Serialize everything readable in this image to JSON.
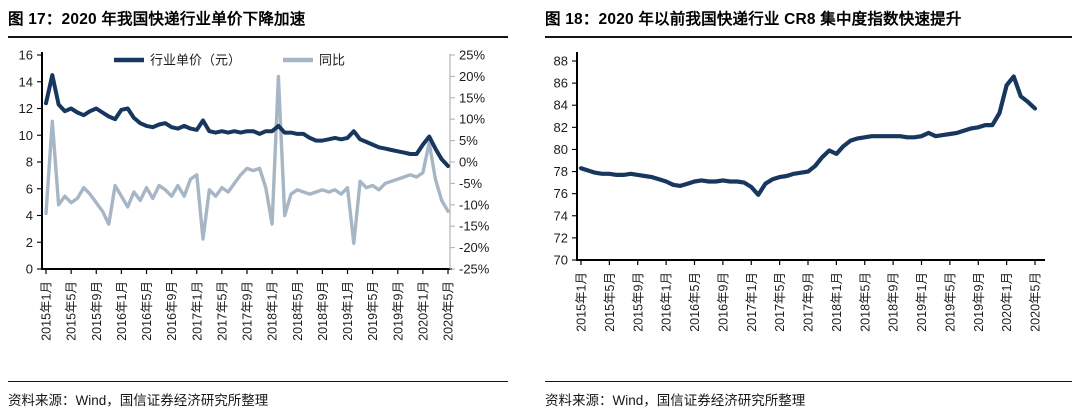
{
  "page": {
    "background": "#ffffff",
    "text_color": "#111111"
  },
  "chart_data": [
    {
      "type": "line",
      "title": "图 17：2020 年我国快递行业单价下降加速",
      "source": "资料来源：Wind，国信证券经济研究所整理",
      "x_start": "2015年1月",
      "x_end": "2020年5月",
      "x_interval": "月",
      "x_tick_labels": [
        "2015年1月",
        "2015年5月",
        "2015年9月",
        "2016年1月",
        "2016年5月",
        "2016年9月",
        "2017年1月",
        "2017年5月",
        "2017年9月",
        "2018年1月",
        "2018年5月",
        "2018年9月",
        "2019年1月",
        "2019年5月",
        "2019年9月",
        "2020年1月",
        "2020年5月"
      ],
      "left_axis": {
        "min": 0,
        "max": 16,
        "ticks": [
          16,
          14,
          12,
          10,
          8,
          6,
          4,
          2,
          0
        ]
      },
      "right_axis": {
        "min": -25,
        "max": 25,
        "tick_labels": [
          "25%",
          "20%",
          "15%",
          "10%",
          "5%",
          "0%",
          "-5%",
          "-10%",
          "-15%",
          "-20%",
          "-25%"
        ]
      },
      "legend": [
        {
          "name": "行业单价（元）",
          "color": "#17375e"
        },
        {
          "name": "同比",
          "color": "#a7b6c5"
        }
      ],
      "series": [
        {
          "name": "行业单价（元）",
          "axis": "left",
          "unit": "元",
          "color": "#17375e",
          "values": [
            12.4,
            14.5,
            12.3,
            11.8,
            12.0,
            11.7,
            11.5,
            11.8,
            12.0,
            11.7,
            11.4,
            11.2,
            11.9,
            12.0,
            11.3,
            10.9,
            10.7,
            10.6,
            10.8,
            10.9,
            10.6,
            10.5,
            10.7,
            10.5,
            10.4,
            11.1,
            10.3,
            10.2,
            10.3,
            10.2,
            10.3,
            10.2,
            10.3,
            10.3,
            10.1,
            10.3,
            10.3,
            10.7,
            10.2,
            10.2,
            10.1,
            10.1,
            9.8,
            9.6,
            9.6,
            9.7,
            9.8,
            9.7,
            9.8,
            10.3,
            9.7,
            9.5,
            9.3,
            9.1,
            9.0,
            8.9,
            8.8,
            8.7,
            8.6,
            8.6,
            9.3,
            9.9,
            9.0,
            8.2,
            7.7
          ]
        },
        {
          "name": "同比",
          "axis": "right",
          "unit": "%",
          "color": "#a7b6c5",
          "values": [
            -12,
            9.5,
            -10,
            -8,
            -9.5,
            -8.5,
            -6,
            -7.5,
            -9.5,
            -11.5,
            -14.5,
            -5.5,
            -8,
            -10.5,
            -7,
            -9,
            -6,
            -8.5,
            -5.5,
            -6.5,
            -8,
            -5.5,
            -8,
            -4,
            -3,
            -18,
            -6.5,
            -8,
            -6,
            -7,
            -5,
            -3,
            -1.5,
            -2,
            -1.5,
            -6,
            -14.5,
            20,
            -12.5,
            -7.5,
            -6.5,
            -7,
            -7.5,
            -7,
            -6.5,
            -7,
            -6.5,
            -7.5,
            -6,
            -19,
            -4.5,
            -6,
            -5.5,
            -6.5,
            -5,
            -4.5,
            -4,
            -3.5,
            -3,
            -3.5,
            -2.5,
            4.5,
            -4,
            -9,
            -11.5
          ]
        }
      ]
    },
    {
      "type": "line",
      "title": "图 18：2020 年以前我国快递行业 CR8 集中度指数快速提升",
      "source": "资料来源：Wind，国信证券经济研究所整理",
      "x_start": "2015年1月",
      "x_end": "2020年5月",
      "x_interval": "月",
      "x_tick_labels": [
        "2015年1月",
        "2015年5月",
        "2015年9月",
        "2016年1月",
        "2016年5月",
        "2016年9月",
        "2017年1月",
        "2017年5月",
        "2017年9月",
        "2018年1月",
        "2018年5月",
        "2018年9月",
        "2019年1月",
        "2019年5月",
        "2019年9月",
        "2020年1月",
        "2020年5月"
      ],
      "y_axis": {
        "min": 70,
        "max": 88,
        "ticks": [
          88,
          86,
          84,
          82,
          80,
          78,
          76,
          74,
          72,
          70
        ]
      },
      "series": [
        {
          "name": "CR8",
          "color": "#17375e",
          "values": [
            78.3,
            78.1,
            77.9,
            77.8,
            77.8,
            77.7,
            77.7,
            77.8,
            77.7,
            77.6,
            77.5,
            77.3,
            77.1,
            76.8,
            76.7,
            76.9,
            77.1,
            77.2,
            77.1,
            77.1,
            77.2,
            77.1,
            77.1,
            77.0,
            76.6,
            75.9,
            76.9,
            77.3,
            77.5,
            77.6,
            77.8,
            77.9,
            78.0,
            78.5,
            79.3,
            79.9,
            79.6,
            80.3,
            80.8,
            81.0,
            81.1,
            81.2,
            81.2,
            81.2,
            81.2,
            81.2,
            81.1,
            81.1,
            81.2,
            81.5,
            81.2,
            81.3,
            81.4,
            81.5,
            81.7,
            81.9,
            82.0,
            82.2,
            82.2,
            83.3,
            85.8,
            86.6,
            84.8,
            84.3,
            83.7
          ]
        }
      ]
    }
  ]
}
